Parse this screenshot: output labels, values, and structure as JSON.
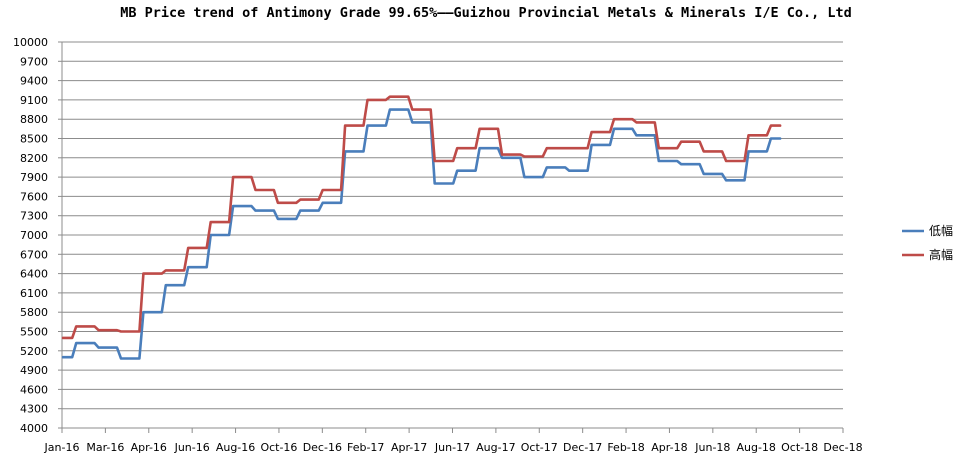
{
  "chart_data": {
    "type": "line",
    "title": "MB Price trend of Antimony Grade 99.65%——Guizhou Provincial Metals & Minerals I/E Co., Ltd",
    "xlabel": "",
    "ylabel": "",
    "ylim": [
      4000,
      10000
    ],
    "yticks": [
      4000,
      4300,
      4600,
      4900,
      5200,
      5500,
      5800,
      6100,
      6400,
      6700,
      7000,
      7300,
      7600,
      7900,
      8200,
      8500,
      8800,
      9100,
      9400,
      9700,
      10000
    ],
    "xtick_labels": [
      "Jan-16",
      "Mar-16",
      "Apr-16",
      "Jun-16",
      "Aug-16",
      "Oct-16",
      "Dec-16",
      "Feb-17",
      "Apr-17",
      "Jun-17",
      "Aug-17",
      "Oct-17",
      "Dec-17",
      "Feb-18",
      "Apr-18",
      "Jun-18",
      "Aug-18",
      "Oct-18",
      "Dec-18"
    ],
    "grid": true,
    "legend_position": "right",
    "x": [
      "Jan-16",
      "Feb-16",
      "Mar-16",
      "Apr-16",
      "May-16",
      "Jun-16",
      "Jul-16",
      "Aug-16",
      "Sep-16",
      "Oct-16",
      "Nov-16",
      "Dec-16",
      "Jan-17",
      "Feb-17",
      "Mar-17",
      "Apr-17",
      "May-17",
      "Jun-17",
      "Jul-17",
      "Aug-17",
      "Sep-17",
      "Oct-17",
      "Nov-17",
      "Dec-17",
      "Jan-18",
      "Feb-18",
      "Mar-18",
      "Apr-18",
      "May-18",
      "Jun-18",
      "Jul-18",
      "Aug-18",
      "Sep-18"
    ],
    "series": [
      {
        "name": "低幅",
        "color": "#4a7ebb",
        "values": [
          5100,
          5320,
          5250,
          5080,
          5800,
          6220,
          6500,
          7000,
          7450,
          7380,
          7250,
          7380,
          7500,
          8300,
          8700,
          8950,
          8750,
          7800,
          8000,
          8350,
          8200,
          7900,
          8050,
          8000,
          8400,
          8650,
          8550,
          8150,
          8100,
          7950,
          7850,
          8300,
          8500
        ]
      },
      {
        "name": "高幅",
        "color": "#be4b48",
        "values": [
          5400,
          5580,
          5520,
          5500,
          6400,
          6450,
          6800,
          7200,
          7900,
          7700,
          7500,
          7550,
          7700,
          8700,
          9100,
          9150,
          8950,
          8150,
          8350,
          8650,
          8250,
          8220,
          8350,
          8350,
          8600,
          8800,
          8750,
          8350,
          8450,
          8300,
          8150,
          8550,
          8700
        ]
      }
    ]
  }
}
